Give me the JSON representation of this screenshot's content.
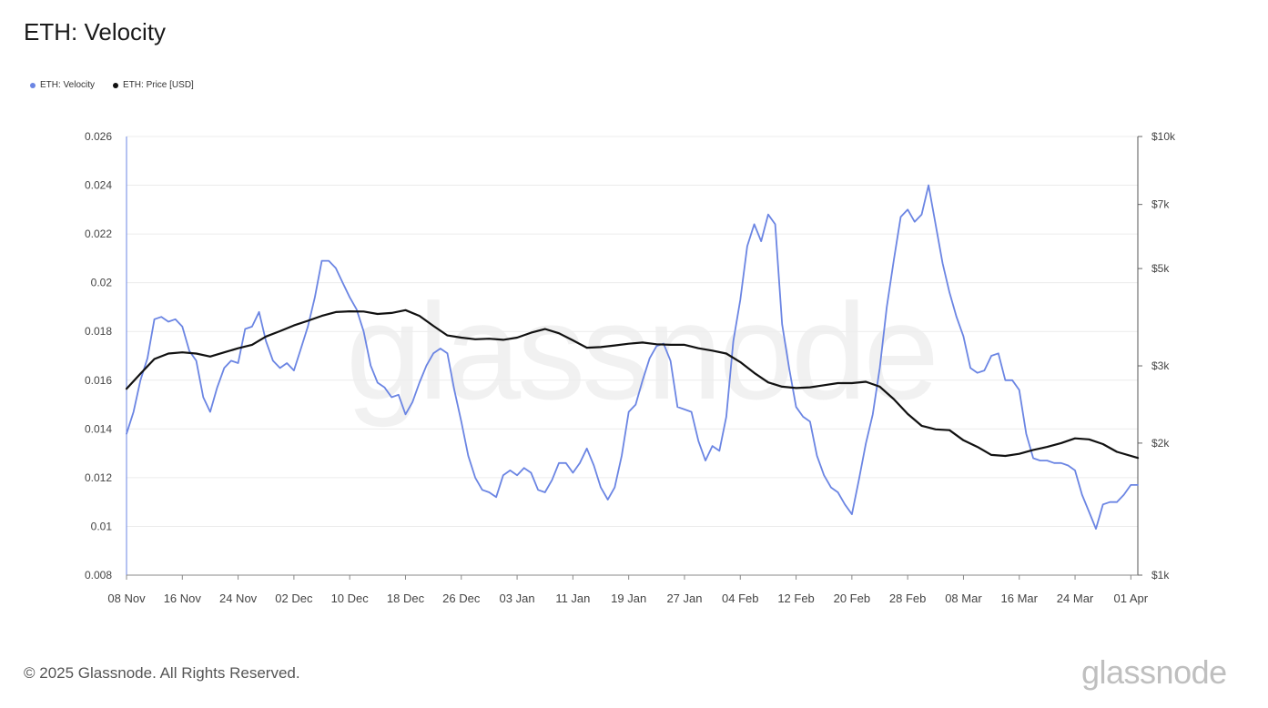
{
  "title": "ETH: Velocity",
  "legend": [
    {
      "label": "ETH: Velocity",
      "color": "#6b85e3"
    },
    {
      "label": "ETH: Price [USD]",
      "color": "#111111"
    }
  ],
  "watermark": "glassnode",
  "footer": {
    "copyright": "© 2025 Glassnode. All Rights Reserved.",
    "logo": "glassnode"
  },
  "chart_data": {
    "type": "line",
    "title": "ETH: Velocity",
    "x_start": "2024-11-08",
    "x_end": "2025-04-02",
    "x_ticks": [
      "08 Nov",
      "16 Nov",
      "24 Nov",
      "02 Dec",
      "10 Dec",
      "18 Dec",
      "26 Dec",
      "03 Jan",
      "11 Jan",
      "19 Jan",
      "27 Jan",
      "04 Feb",
      "12 Feb",
      "20 Feb",
      "28 Feb",
      "08 Mar",
      "16 Mar",
      "24 Mar",
      "01 Apr"
    ],
    "y_left": {
      "label": "",
      "range": [
        0.008,
        0.026
      ],
      "ticks": [
        "0.008",
        "0.01",
        "0.012",
        "0.014",
        "0.016",
        "0.018",
        "0.02",
        "0.022",
        "0.024",
        "0.026"
      ]
    },
    "y_right": {
      "label": "",
      "scale": "log",
      "range": [
        1000,
        10000
      ],
      "ticks": [
        {
          "v": 1000,
          "label": "$1k"
        },
        {
          "v": 2000,
          "label": "$2k"
        },
        {
          "v": 3000,
          "label": "$3k"
        },
        {
          "v": 5000,
          "label": "$5k"
        },
        {
          "v": 7000,
          "label": "$7k"
        },
        {
          "v": 10000,
          "label": "$10k"
        }
      ]
    },
    "grid": true,
    "legend_position": "top-left",
    "series": [
      {
        "name": "ETH: Velocity",
        "axis": "left",
        "color": "#6b85e3",
        "points": [
          [
            "2024-11-08",
            0.0138
          ],
          [
            "2024-11-09",
            0.0147
          ],
          [
            "2024-11-10",
            0.016
          ],
          [
            "2024-11-11",
            0.0169
          ],
          [
            "2024-11-12",
            0.0185
          ],
          [
            "2024-11-13",
            0.0186
          ],
          [
            "2024-11-14",
            0.0184
          ],
          [
            "2024-11-15",
            0.0185
          ],
          [
            "2024-11-16",
            0.0182
          ],
          [
            "2024-11-17",
            0.0172
          ],
          [
            "2024-11-18",
            0.0168
          ],
          [
            "2024-11-19",
            0.0153
          ],
          [
            "2024-11-20",
            0.0147
          ],
          [
            "2024-11-21",
            0.0157
          ],
          [
            "2024-11-22",
            0.0165
          ],
          [
            "2024-11-23",
            0.0168
          ],
          [
            "2024-11-24",
            0.0167
          ],
          [
            "2024-11-25",
            0.0181
          ],
          [
            "2024-11-26",
            0.0182
          ],
          [
            "2024-11-27",
            0.0188
          ],
          [
            "2024-11-28",
            0.0176
          ],
          [
            "2024-11-29",
            0.0168
          ],
          [
            "2024-11-30",
            0.0165
          ],
          [
            "2024-12-01",
            0.0167
          ],
          [
            "2024-12-02",
            0.0164
          ],
          [
            "2024-12-03",
            0.0173
          ],
          [
            "2024-12-04",
            0.0182
          ],
          [
            "2024-12-05",
            0.0194
          ],
          [
            "2024-12-06",
            0.0209
          ],
          [
            "2024-12-07",
            0.0209
          ],
          [
            "2024-12-08",
            0.0206
          ],
          [
            "2024-12-09",
            0.02
          ],
          [
            "2024-12-10",
            0.0194
          ],
          [
            "2024-12-11",
            0.0189
          ],
          [
            "2024-12-12",
            0.018
          ],
          [
            "2024-12-13",
            0.0166
          ],
          [
            "2024-12-14",
            0.0159
          ],
          [
            "2024-12-15",
            0.0157
          ],
          [
            "2024-12-16",
            0.0153
          ],
          [
            "2024-12-17",
            0.0154
          ],
          [
            "2024-12-18",
            0.0146
          ],
          [
            "2024-12-19",
            0.0151
          ],
          [
            "2024-12-20",
            0.0159
          ],
          [
            "2024-12-21",
            0.0166
          ],
          [
            "2024-12-22",
            0.0171
          ],
          [
            "2024-12-23",
            0.0173
          ],
          [
            "2024-12-24",
            0.0171
          ],
          [
            "2024-12-25",
            0.0156
          ],
          [
            "2024-12-26",
            0.0143
          ],
          [
            "2024-12-27",
            0.0129
          ],
          [
            "2024-12-28",
            0.012
          ],
          [
            "2024-12-29",
            0.0115
          ],
          [
            "2024-12-30",
            0.0114
          ],
          [
            "2024-12-31",
            0.0112
          ],
          [
            "2025-01-01",
            0.0121
          ],
          [
            "2025-01-02",
            0.0123
          ],
          [
            "2025-01-03",
            0.0121
          ],
          [
            "2025-01-04",
            0.0124
          ],
          [
            "2025-01-05",
            0.0122
          ],
          [
            "2025-01-06",
            0.0115
          ],
          [
            "2025-01-07",
            0.0114
          ],
          [
            "2025-01-08",
            0.0119
          ],
          [
            "2025-01-09",
            0.0126
          ],
          [
            "2025-01-10",
            0.0126
          ],
          [
            "2025-01-11",
            0.0122
          ],
          [
            "2025-01-12",
            0.0126
          ],
          [
            "2025-01-13",
            0.0132
          ],
          [
            "2025-01-14",
            0.0125
          ],
          [
            "2025-01-15",
            0.0116
          ],
          [
            "2025-01-16",
            0.0111
          ],
          [
            "2025-01-17",
            0.0116
          ],
          [
            "2025-01-18",
            0.0129
          ],
          [
            "2025-01-19",
            0.0147
          ],
          [
            "2025-01-20",
            0.015
          ],
          [
            "2025-01-21",
            0.016
          ],
          [
            "2025-01-22",
            0.0169
          ],
          [
            "2025-01-23",
            0.0174
          ],
          [
            "2025-01-24",
            0.0175
          ],
          [
            "2025-01-25",
            0.0168
          ],
          [
            "2025-01-26",
            0.0149
          ],
          [
            "2025-01-27",
            0.0148
          ],
          [
            "2025-01-28",
            0.0147
          ],
          [
            "2025-01-29",
            0.0135
          ],
          [
            "2025-01-30",
            0.0127
          ],
          [
            "2025-01-31",
            0.0133
          ],
          [
            "2025-02-01",
            0.0131
          ],
          [
            "2025-02-02",
            0.0145
          ],
          [
            "2025-02-03",
            0.0176
          ],
          [
            "2025-02-04",
            0.0193
          ],
          [
            "2025-02-05",
            0.0215
          ],
          [
            "2025-02-06",
            0.0224
          ],
          [
            "2025-02-07",
            0.0217
          ],
          [
            "2025-02-08",
            0.0228
          ],
          [
            "2025-02-09",
            0.0224
          ],
          [
            "2025-02-10",
            0.0183
          ],
          [
            "2025-02-11",
            0.0165
          ],
          [
            "2025-02-12",
            0.0149
          ],
          [
            "2025-02-13",
            0.0145
          ],
          [
            "2025-02-14",
            0.0143
          ],
          [
            "2025-02-15",
            0.0129
          ],
          [
            "2025-02-16",
            0.0121
          ],
          [
            "2025-02-17",
            0.0116
          ],
          [
            "2025-02-18",
            0.0114
          ],
          [
            "2025-02-19",
            0.0109
          ],
          [
            "2025-02-20",
            0.0105
          ],
          [
            "2025-02-21",
            0.0119
          ],
          [
            "2025-02-22",
            0.0134
          ],
          [
            "2025-02-23",
            0.0146
          ],
          [
            "2025-02-24",
            0.0165
          ],
          [
            "2025-02-25",
            0.019
          ],
          [
            "2025-02-26",
            0.0209
          ],
          [
            "2025-02-27",
            0.0227
          ],
          [
            "2025-02-28",
            0.023
          ],
          [
            "2025-03-01",
            0.0225
          ],
          [
            "2025-03-02",
            0.0228
          ],
          [
            "2025-03-03",
            0.024
          ],
          [
            "2025-03-04",
            0.0224
          ],
          [
            "2025-03-05",
            0.0208
          ],
          [
            "2025-03-06",
            0.0196
          ],
          [
            "2025-03-07",
            0.0186
          ],
          [
            "2025-03-08",
            0.0178
          ],
          [
            "2025-03-09",
            0.0165
          ],
          [
            "2025-03-10",
            0.0163
          ],
          [
            "2025-03-11",
            0.0164
          ],
          [
            "2025-03-12",
            0.017
          ],
          [
            "2025-03-13",
            0.0171
          ],
          [
            "2025-03-14",
            0.016
          ],
          [
            "2025-03-15",
            0.016
          ],
          [
            "2025-03-16",
            0.0156
          ],
          [
            "2025-03-17",
            0.0138
          ],
          [
            "2025-03-18",
            0.0128
          ],
          [
            "2025-03-19",
            0.0127
          ],
          [
            "2025-03-20",
            0.0127
          ],
          [
            "2025-03-21",
            0.0126
          ],
          [
            "2025-03-22",
            0.0126
          ],
          [
            "2025-03-23",
            0.0125
          ],
          [
            "2025-03-24",
            0.0123
          ],
          [
            "2025-03-25",
            0.0113
          ],
          [
            "2025-03-26",
            0.0106
          ],
          [
            "2025-03-27",
            0.0099
          ],
          [
            "2025-03-28",
            0.0109
          ],
          [
            "2025-03-29",
            0.011
          ],
          [
            "2025-03-30",
            0.011
          ],
          [
            "2025-03-31",
            0.0113
          ],
          [
            "2025-04-01",
            0.0117
          ],
          [
            "2025-04-02",
            0.0117
          ]
        ]
      },
      {
        "name": "ETH: Price [USD]",
        "axis": "right",
        "color": "#111111",
        "points": [
          [
            "2024-11-08",
            2660
          ],
          [
            "2024-11-10",
            2880
          ],
          [
            "2024-11-12",
            3110
          ],
          [
            "2024-11-14",
            3200
          ],
          [
            "2024-11-16",
            3220
          ],
          [
            "2024-11-18",
            3200
          ],
          [
            "2024-11-20",
            3150
          ],
          [
            "2024-11-22",
            3220
          ],
          [
            "2024-11-24",
            3290
          ],
          [
            "2024-11-26",
            3350
          ],
          [
            "2024-11-28",
            3500
          ],
          [
            "2024-11-30",
            3600
          ],
          [
            "2024-12-02",
            3710
          ],
          [
            "2024-12-04",
            3800
          ],
          [
            "2024-12-06",
            3900
          ],
          [
            "2024-12-08",
            3980
          ],
          [
            "2024-12-10",
            3995
          ],
          [
            "2024-12-12",
            3990
          ],
          [
            "2024-12-14",
            3940
          ],
          [
            "2024-12-16",
            3960
          ],
          [
            "2024-12-18",
            4020
          ],
          [
            "2024-12-20",
            3900
          ],
          [
            "2024-12-22",
            3700
          ],
          [
            "2024-12-24",
            3520
          ],
          [
            "2024-12-26",
            3480
          ],
          [
            "2024-12-28",
            3450
          ],
          [
            "2024-12-30",
            3460
          ],
          [
            "2025-01-01",
            3440
          ],
          [
            "2025-01-03",
            3480
          ],
          [
            "2025-01-05",
            3570
          ],
          [
            "2025-01-07",
            3640
          ],
          [
            "2025-01-09",
            3560
          ],
          [
            "2025-01-11",
            3430
          ],
          [
            "2025-01-13",
            3300
          ],
          [
            "2025-01-15",
            3310
          ],
          [
            "2025-01-17",
            3340
          ],
          [
            "2025-01-19",
            3370
          ],
          [
            "2025-01-21",
            3390
          ],
          [
            "2025-01-23",
            3360
          ],
          [
            "2025-01-25",
            3350
          ],
          [
            "2025-01-27",
            3350
          ],
          [
            "2025-01-29",
            3290
          ],
          [
            "2025-01-31",
            3250
          ],
          [
            "2025-02-02",
            3200
          ],
          [
            "2025-02-04",
            3060
          ],
          [
            "2025-02-06",
            2890
          ],
          [
            "2025-02-08",
            2750
          ],
          [
            "2025-02-10",
            2690
          ],
          [
            "2025-02-12",
            2670
          ],
          [
            "2025-02-14",
            2680
          ],
          [
            "2025-02-16",
            2710
          ],
          [
            "2025-02-18",
            2740
          ],
          [
            "2025-02-20",
            2740
          ],
          [
            "2025-02-22",
            2760
          ],
          [
            "2025-02-24",
            2690
          ],
          [
            "2025-02-26",
            2520
          ],
          [
            "2025-02-28",
            2330
          ],
          [
            "2025-03-02",
            2190
          ],
          [
            "2025-03-04",
            2150
          ],
          [
            "2025-03-06",
            2140
          ],
          [
            "2025-03-08",
            2030
          ],
          [
            "2025-03-10",
            1960
          ],
          [
            "2025-03-12",
            1880
          ],
          [
            "2025-03-14",
            1870
          ],
          [
            "2025-03-16",
            1890
          ],
          [
            "2025-03-18",
            1930
          ],
          [
            "2025-03-20",
            1960
          ],
          [
            "2025-03-22",
            2000
          ],
          [
            "2025-03-24",
            2050
          ],
          [
            "2025-03-26",
            2040
          ],
          [
            "2025-03-28",
            1990
          ],
          [
            "2025-03-30",
            1910
          ],
          [
            "2025-04-02",
            1850
          ]
        ]
      }
    ]
  }
}
